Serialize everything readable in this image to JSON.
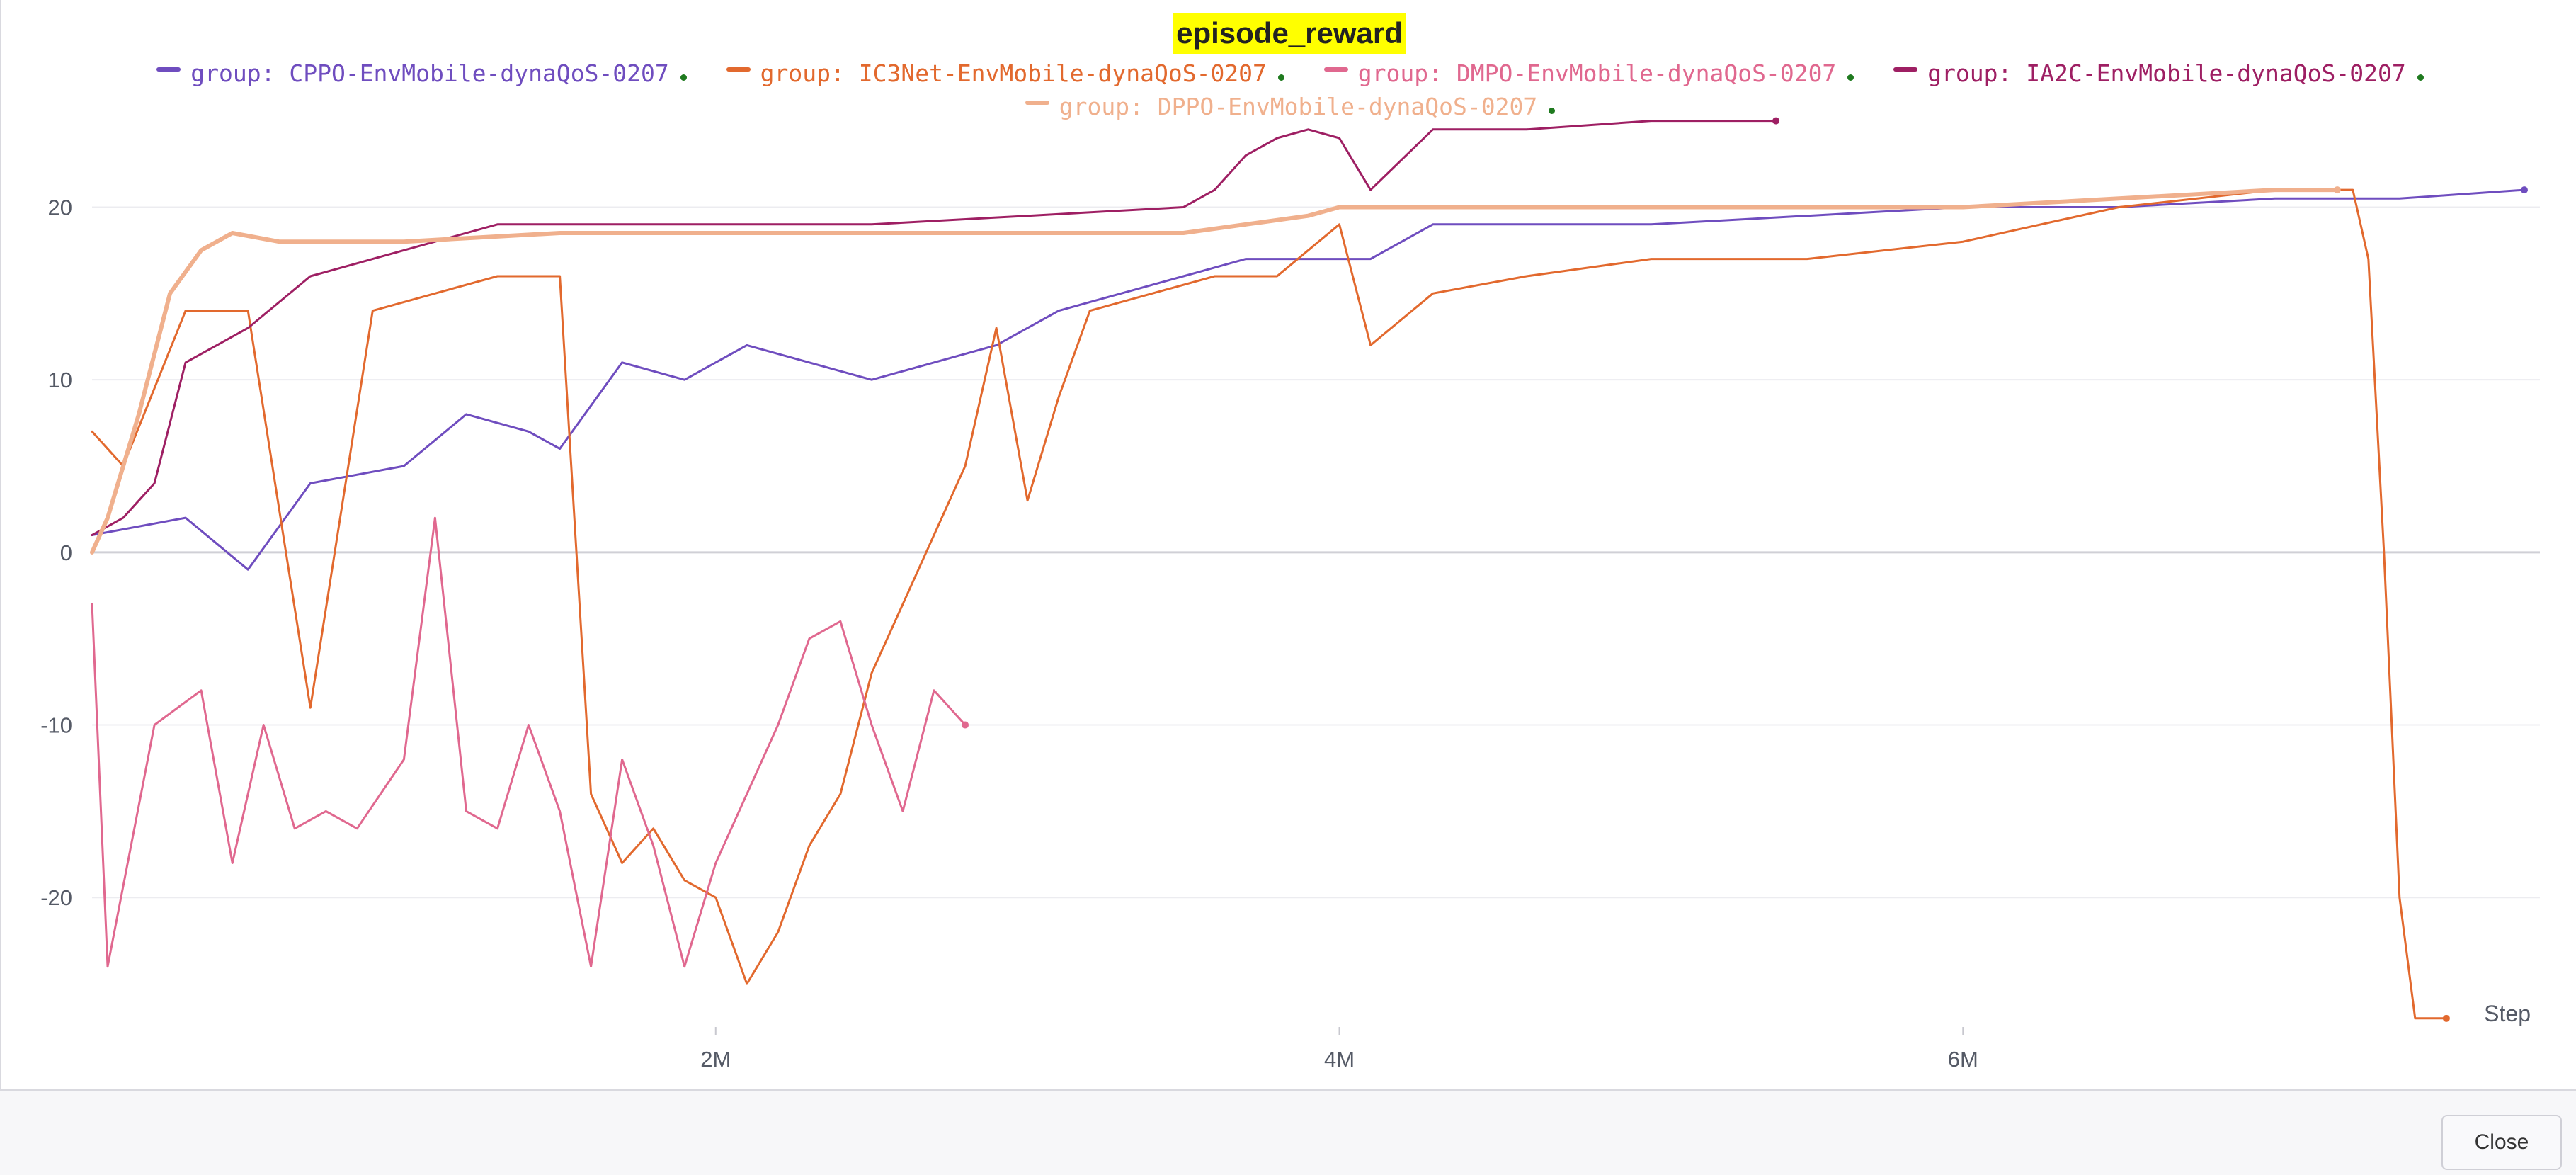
{
  "chart_data": {
    "type": "line",
    "title": "episode_reward",
    "xlabel": "Step",
    "ylabel": "",
    "xlim": [
      0,
      7850000
    ],
    "ylim": [
      -27.5,
      24
    ],
    "x_ticks": [
      2000000,
      4000000,
      6000000
    ],
    "x_tick_labels": [
      "2M",
      "4M",
      "6M"
    ],
    "y_ticks": [
      -20,
      -10,
      0,
      10,
      20
    ],
    "y_tick_labels": [
      "-20",
      "-10",
      "0",
      "10",
      "20"
    ],
    "grid": true,
    "legend_position": "top",
    "series": [
      {
        "name": "group: CPPO-EnvMobile-dynaQoS-0207",
        "color": "#6f4dbf",
        "x": [
          0,
          300000,
          500000,
          700000,
          1000000,
          1200000,
          1400000,
          1500000,
          1700000,
          1900000,
          2100000,
          2300000,
          2500000,
          2700000,
          2900000,
          3100000,
          3300000,
          3500000,
          3700000,
          3900000,
          4100000,
          4300000,
          4600000,
          5000000,
          5500000,
          6000000,
          6500000,
          7000000,
          7400000,
          7800000
        ],
        "y": [
          1,
          2,
          -1,
          4,
          5,
          8,
          7,
          6,
          11,
          10,
          12,
          11,
          10,
          11,
          12,
          14,
          15,
          16,
          17,
          17,
          17,
          19,
          19,
          19,
          19.5,
          20,
          20,
          20.5,
          20.5,
          21
        ]
      },
      {
        "name": "group: IC3Net-EnvMobile-dynaQoS-0207",
        "color": "#e2692e",
        "x": [
          0,
          100000,
          300000,
          500000,
          700000,
          900000,
          1100000,
          1300000,
          1500000,
          1600000,
          1700000,
          1800000,
          1900000,
          2000000,
          2100000,
          2200000,
          2300000,
          2400000,
          2500000,
          2600000,
          2700000,
          2800000,
          2900000,
          3000000,
          3100000,
          3200000,
          3400000,
          3600000,
          3800000,
          4000000,
          4100000,
          4300000,
          4600000,
          5000000,
          5500000,
          6000000,
          6500000,
          7000000,
          7250000,
          7300000,
          7350000,
          7400000,
          7450000,
          7550000
        ],
        "y": [
          7,
          5,
          14,
          14,
          -9,
          14,
          15,
          16,
          16,
          -14,
          -18,
          -16,
          -19,
          -20,
          -25,
          -22,
          -17,
          -14,
          -7,
          -3,
          1,
          5,
          13,
          3,
          9,
          14,
          15,
          16,
          16,
          19,
          12,
          15,
          16,
          17,
          17,
          18,
          20,
          21,
          21,
          17,
          0,
          -20,
          -27,
          -27
        ]
      },
      {
        "name": "group: DMPO-EnvMobile-dynaQoS-0207",
        "color": "#e0688f",
        "x": [
          0,
          50000,
          200000,
          350000,
          450000,
          550000,
          650000,
          750000,
          850000,
          1000000,
          1100000,
          1200000,
          1300000,
          1400000,
          1500000,
          1600000,
          1700000,
          1800000,
          1900000,
          2000000,
          2100000,
          2200000,
          2300000,
          2400000,
          2500000,
          2600000,
          2700000,
          2800000
        ],
        "y": [
          -3,
          -24,
          -10,
          -8,
          -18,
          -10,
          -16,
          -15,
          -16,
          -12,
          2,
          -15,
          -16,
          -10,
          -15,
          -24,
          -12,
          -17,
          -24,
          -18,
          -14,
          -10,
          -5,
          -4,
          -10,
          -15,
          -8,
          -10
        ]
      },
      {
        "name": "group: IA2C-EnvMobile-dynaQoS-0207",
        "color": "#9e1f63",
        "x": [
          0,
          100000,
          200000,
          300000,
          400000,
          500000,
          700000,
          900000,
          1100000,
          1300000,
          1500000,
          1700000,
          2000000,
          2500000,
          3000000,
          3500000,
          3600000,
          3700000,
          3800000,
          3900000,
          4000000,
          4100000,
          4300000,
          4600000,
          5000000,
          5400000
        ],
        "y": [
          1,
          2,
          4,
          11,
          12,
          13,
          16,
          17,
          18,
          19,
          19,
          19,
          19,
          19,
          19.5,
          20,
          21,
          23,
          24,
          24.5,
          24,
          21,
          24.5,
          24.5,
          25,
          25
        ]
      },
      {
        "name": "group: DPPO-EnvMobile-dynaQoS-0207",
        "color": "#f0b08d",
        "x": [
          0,
          50000,
          150000,
          250000,
          350000,
          450000,
          600000,
          800000,
          1000000,
          1500000,
          2000000,
          2500000,
          3000000,
          3500000,
          3900000,
          4000000,
          4500000,
          5000000,
          5500000,
          6000000,
          6500000,
          7000000,
          7200000
        ],
        "y": [
          0,
          2,
          8,
          15,
          17.5,
          18.5,
          18,
          18,
          18,
          18.5,
          18.5,
          18.5,
          18.5,
          18.5,
          19.5,
          20,
          20,
          20,
          20,
          20,
          20.5,
          21,
          21
        ]
      }
    ]
  },
  "footer": {
    "close_label": "Close"
  }
}
